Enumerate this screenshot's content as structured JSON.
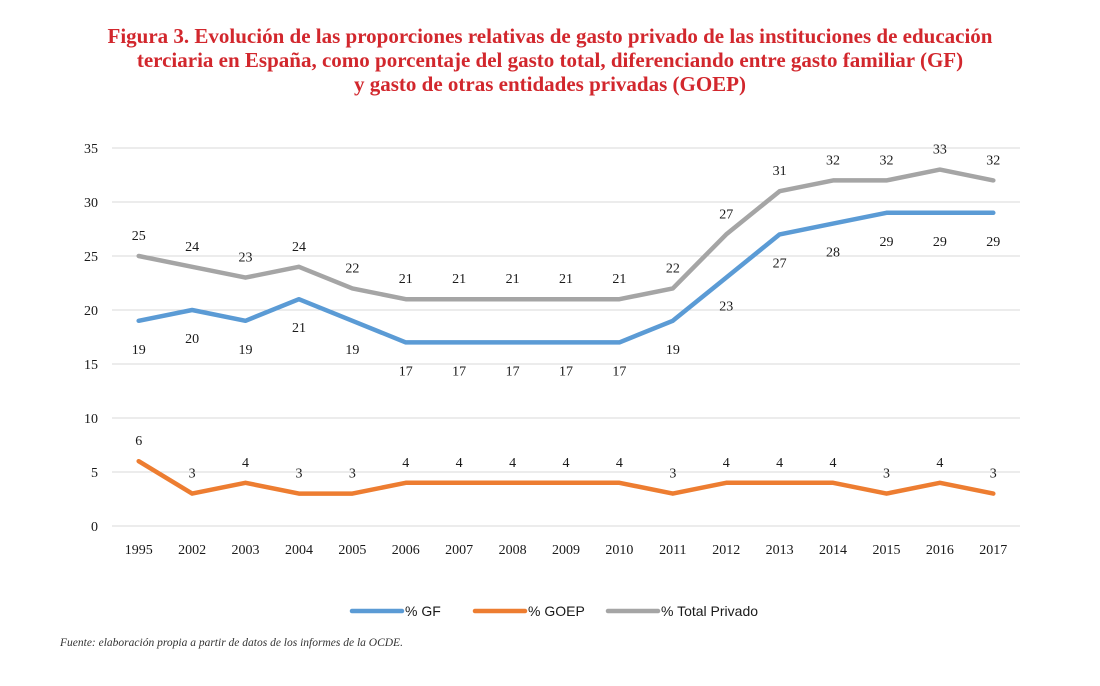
{
  "header": {
    "title_lines": [
      "Figura 3. Evolución de las proporciones relativas de gasto privado de las instituciones de educación",
      "terciaria en España, como porcentaje del gasto total, diferenciando entre gasto familiar (GF)",
      "y gasto de otras entidades privadas (GOEP)"
    ]
  },
  "source_note": "Fuente: elaboración propia a partir de datos de los informes de la OCDE.",
  "chart_data": {
    "type": "line",
    "categories": [
      "1995",
      "2002",
      "2003",
      "2004",
      "2005",
      "2006",
      "2007",
      "2008",
      "2009",
      "2010",
      "2011",
      "2012",
      "2013",
      "2014",
      "2015",
      "2016",
      "2017"
    ],
    "ylim": [
      0,
      35
    ],
    "yticks": [
      0,
      5,
      10,
      15,
      20,
      25,
      30,
      35
    ],
    "grid": true,
    "legend_position": "bottom",
    "xlabel": "",
    "ylabel": "",
    "series": [
      {
        "name": "% GF",
        "color": "#5b9bd5",
        "label_position": "below",
        "values": [
          19,
          20,
          19,
          21,
          19,
          17,
          17,
          17,
          17,
          17,
          19,
          23,
          27,
          28,
          29,
          29,
          29
        ]
      },
      {
        "name": "% GOEP",
        "color": "#ed7d31",
        "label_position": "above",
        "values": [
          6,
          3,
          4,
          3,
          3,
          4,
          4,
          4,
          4,
          4,
          3,
          4,
          4,
          4,
          3,
          4,
          3
        ]
      },
      {
        "name": "% Total Privado",
        "color": "#a5a5a5",
        "label_position": "above",
        "values": [
          25,
          24,
          23,
          24,
          22,
          21,
          21,
          21,
          21,
          21,
          22,
          27,
          31,
          32,
          32,
          33,
          32
        ]
      }
    ]
  }
}
